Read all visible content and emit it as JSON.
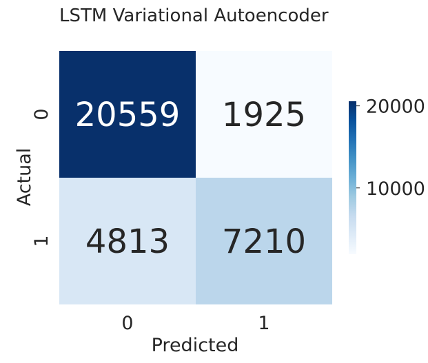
{
  "chart_data": {
    "type": "heatmap",
    "title": "LSTM Variational Autoencoder",
    "xlabel": "Predicted",
    "ylabel": "Actual",
    "x_categories": [
      "0",
      "1"
    ],
    "y_categories": [
      "0",
      "1"
    ],
    "values": [
      [
        20559,
        1925
      ],
      [
        4813,
        7210
      ]
    ],
    "value_labels": [
      [
        "20559",
        "1925"
      ],
      [
        "4813",
        "7210"
      ]
    ],
    "colormap": "Blues",
    "colorbar": {
      "range": [
        1925,
        20559
      ],
      "ticks": [
        10000,
        20000
      ],
      "tick_labels": [
        "10000",
        "20000"
      ]
    },
    "colors": {
      "high": "#08306b",
      "low": "#f7fbff",
      "text_dark": "#262626",
      "text_light": "#ffffff"
    }
  }
}
